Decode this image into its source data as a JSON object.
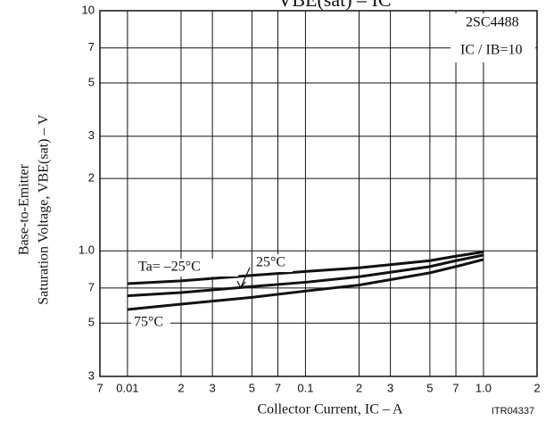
{
  "chart_data": {
    "type": "line",
    "title": "VBE(sat) – IC",
    "x_label": "Collector Current, IC – A",
    "y_label": [
      "Base-to-Emitter",
      "Saturation Voltage, VBE(sat) – V"
    ],
    "annotations": [
      "2SC4488",
      "IC / IB=10",
      "ITR04337"
    ],
    "log_x": true,
    "log_y": true,
    "grid": true,
    "xlim": [
      0.007,
      2
    ],
    "ylim": [
      0.3,
      10
    ],
    "xticks": [
      {
        "value": 0.007,
        "label": "7"
      },
      0.01,
      {
        "value": 0.02,
        "label": "2"
      },
      {
        "value": 0.03,
        "label": "3"
      },
      {
        "value": 0.05,
        "label": "5"
      },
      {
        "value": 0.07,
        "label": "7"
      },
      0.1,
      {
        "value": 0.2,
        "label": "2"
      },
      {
        "value": 0.3,
        "label": "3"
      },
      {
        "value": 0.5,
        "label": "5"
      },
      {
        "value": 0.7,
        "label": "7"
      },
      {
        "value": 1,
        "label": "1.0"
      },
      2
    ],
    "yticks": [
      10,
      7,
      5,
      3,
      2,
      {
        "value": 1,
        "label": "1.0"
      },
      {
        "value": 0.7,
        "label": "7"
      },
      {
        "value": 0.5,
        "label": "5"
      },
      {
        "value": 0.3,
        "label": "3"
      }
    ],
    "x": [
      0.01,
      0.02,
      0.05,
      0.1,
      0.2,
      0.5,
      0.7,
      1.0
    ],
    "series": [
      {
        "name": "Ta= –25°C",
        "color": "#111111",
        "values": [
          0.73,
          0.75,
          0.79,
          0.82,
          0.85,
          0.91,
          0.95,
          0.99
        ]
      },
      {
        "name": "25°C",
        "color": "#111111",
        "values": [
          0.65,
          0.67,
          0.71,
          0.74,
          0.78,
          0.86,
          0.91,
          0.96
        ]
      },
      {
        "name": "75°C",
        "color": "#111111",
        "values": [
          0.57,
          0.6,
          0.64,
          0.68,
          0.72,
          0.81,
          0.86,
          0.92
        ]
      }
    ]
  }
}
